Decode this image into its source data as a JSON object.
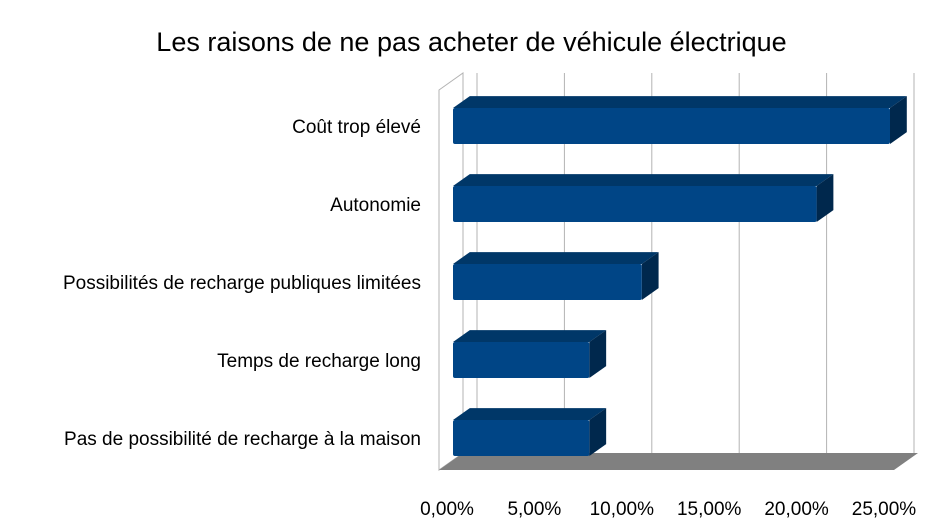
{
  "chart_data": {
    "type": "bar",
    "orientation": "horizontal",
    "title": "Les raisons de ne pas acheter de véhicule électrique",
    "categories": [
      "Coût trop élevé",
      "Autonomie",
      "Possibilités de recharge publiques limitées",
      "Temps de recharge long",
      "Pas de possibilité de recharge à la maison"
    ],
    "values": [
      25.0,
      20.8,
      10.8,
      7.8,
      7.8
    ],
    "xlim": [
      0,
      25
    ],
    "x_ticks": [
      "0,00%",
      "5,00%",
      "10,00%",
      "15,00%",
      "20,00%",
      "25,00%"
    ],
    "grid": true,
    "legend": "none",
    "style": "3d",
    "colors": {
      "bar_front": "#004586",
      "bar_top": "#003768",
      "bar_side": "#00284d",
      "floor": "#808080",
      "grid": "#b3b3b3"
    }
  }
}
